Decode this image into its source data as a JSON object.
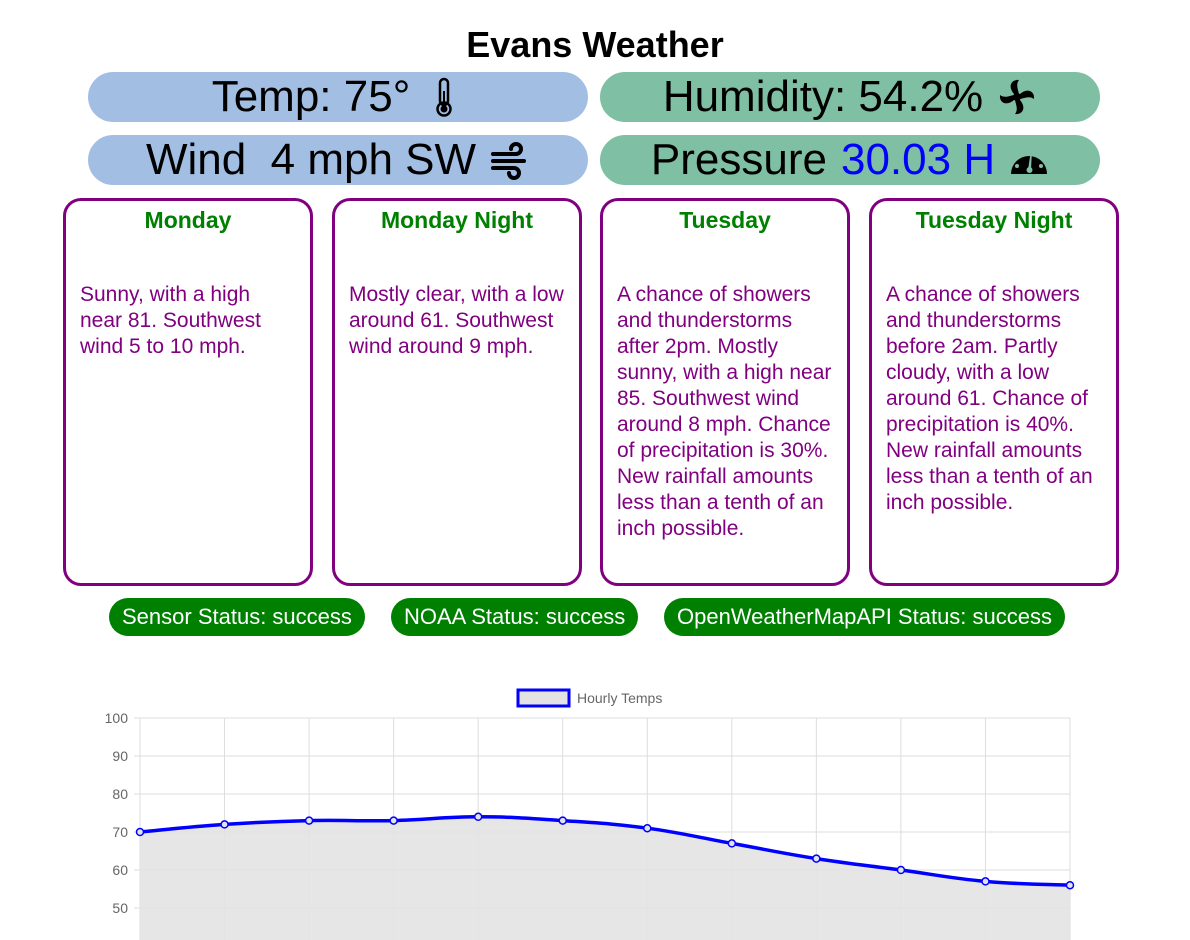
{
  "title": "Evans Weather",
  "conditions": {
    "temp": {
      "label": "Temp: 75°",
      "icon": "thermometer-icon"
    },
    "humidity": {
      "label": "Humidity: 54.2%",
      "icon": "fan-icon"
    },
    "wind": {
      "label": "Wind  4 mph SW",
      "icon": "wind-icon"
    },
    "pressure": {
      "label": "Pressure",
      "value": "30.03 H",
      "value_color": "#0000ff",
      "icon": "gauge-icon"
    }
  },
  "forecast": [
    {
      "name": "Monday",
      "text": "Sunny, with a high near 81. Southwest wind 5 to 10 mph."
    },
    {
      "name": "Monday Night",
      "text": "Mostly clear, with a low around 61. Southwest wind around 9 mph."
    },
    {
      "name": "Tuesday",
      "text": "A chance of showers and thunderstorms after 2pm. Mostly sunny, with a high near 85. Southwest wind around 8 mph. Chance of precipitation is 30%. New rainfall amounts less than a tenth of an inch possible."
    },
    {
      "name": "Tuesday Night",
      "text": "A chance of showers and thunderstorms before 2am. Partly cloudy, with a low around 61. Chance of precipitation is 40%. New rainfall amounts less than a tenth of an inch possible."
    }
  ],
  "status": [
    "Sensor Status: success",
    "NOAA Status: success",
    "OpenWeatherMapAPI Status: success"
  ],
  "colors": {
    "temp_pill": "#a2bfe3",
    "green_pill": "#7fbfa4",
    "card_border": "#800080",
    "status_bg": "#008000"
  },
  "chart_data": {
    "type": "line",
    "series": [
      {
        "name": "Hourly Temps",
        "values": [
          70,
          72,
          73,
          73,
          74,
          73,
          71,
          67,
          63,
          60,
          57,
          56
        ]
      }
    ],
    "yticks": [
      100,
      90,
      80,
      70,
      60,
      50
    ],
    "ylim": [
      50,
      100
    ],
    "grid": true,
    "legend": "top",
    "line_color": "#0000ff",
    "fill_color": "#e3e3e3"
  }
}
